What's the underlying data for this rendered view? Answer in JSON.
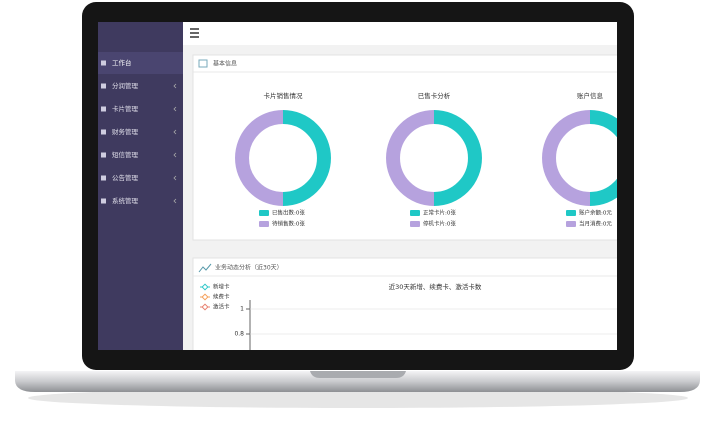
{
  "sidebar": {
    "menu": [
      "工作台",
      "分润管理",
      "卡片管理",
      "财务管理",
      "短信管理",
      "公告管理",
      "系统管理"
    ]
  },
  "basic_panel": {
    "title": "基本信息",
    "charts": [
      {
        "title": "卡片销售情况",
        "legend": [
          "已售出数:0张",
          "待销售数:0张"
        ]
      },
      {
        "title": "已售卡分析",
        "legend": [
          "正常卡片:0张",
          "停机卡片:0张"
        ]
      },
      {
        "title": "账户信息",
        "legend": [
          "账户余额:0元",
          "当月消费:0元"
        ]
      }
    ]
  },
  "trend_panel": {
    "title": "业务动态分析（近30天）",
    "chart_title": "近30天新增、续费卡、激活卡数",
    "legend": [
      "新增卡",
      "续费卡",
      "激活卡"
    ],
    "yticks": [
      1,
      0.8
    ]
  }
}
